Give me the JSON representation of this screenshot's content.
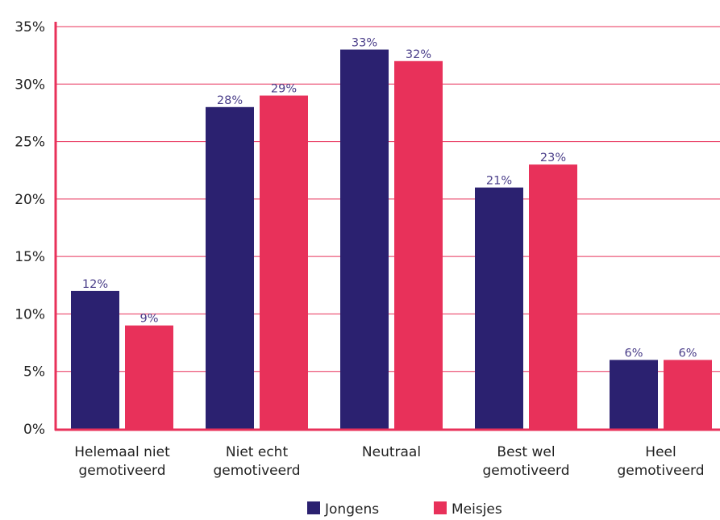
{
  "chart_data": {
    "type": "bar",
    "categories": [
      [
        "Helemaal niet",
        "gemotiveerd"
      ],
      [
        "Niet echt",
        "gemotiveerd"
      ],
      [
        "Neutraal"
      ],
      [
        "Best wel",
        "gemotiveerd"
      ],
      [
        "Heel",
        "gemotiveerd"
      ]
    ],
    "series": [
      {
        "name": "Jongens",
        "color": "#2b2170",
        "values": [
          12,
          28,
          33,
          21,
          6
        ],
        "labels": [
          "12%",
          "28%",
          "33%",
          "21%",
          "6%"
        ]
      },
      {
        "name": "Meisjes",
        "color": "#e8315a",
        "values": [
          9,
          29,
          32,
          23,
          6
        ],
        "labels": [
          "9%",
          "29%",
          "32%",
          "23%",
          "6%"
        ]
      }
    ],
    "ylim": [
      0,
      35
    ],
    "yticks": [
      0,
      5,
      10,
      15,
      20,
      25,
      30,
      35
    ],
    "ytick_labels": [
      "0%",
      "5%",
      "10%",
      "15%",
      "20%",
      "25%",
      "30%",
      "35%"
    ],
    "grid": true,
    "legend_position": "bottom-center",
    "axis_color": "#e8315a",
    "grid_color": "#e8315a",
    "data_label_color": "#4b3f8a"
  }
}
